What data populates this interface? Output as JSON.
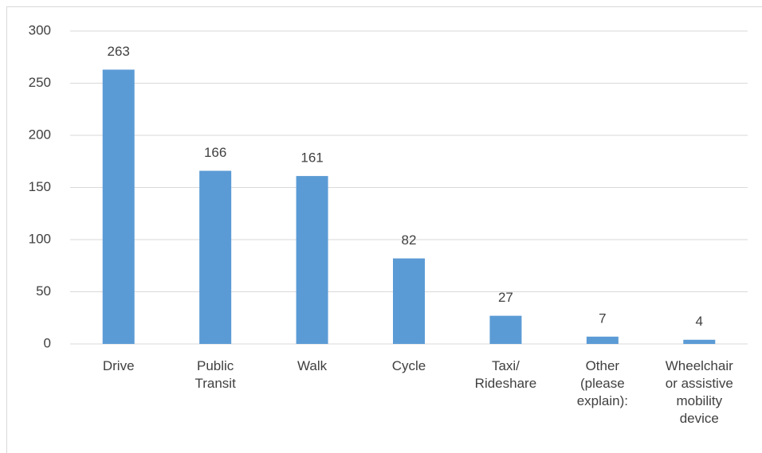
{
  "chart_data": {
    "type": "bar",
    "categories": [
      "Drive",
      "Public Transit",
      "Walk",
      "Cycle",
      "Taxi/ Rideshare",
      "Other (please explain):",
      "Wheelchair or assistive mobility device"
    ],
    "values": [
      263,
      166,
      161,
      82,
      27,
      7,
      4
    ],
    "color": "#5b9bd5",
    "ylim": [
      0,
      300
    ],
    "yticks": [
      0,
      50,
      100,
      150,
      200,
      250,
      300
    ],
    "grid": true
  }
}
